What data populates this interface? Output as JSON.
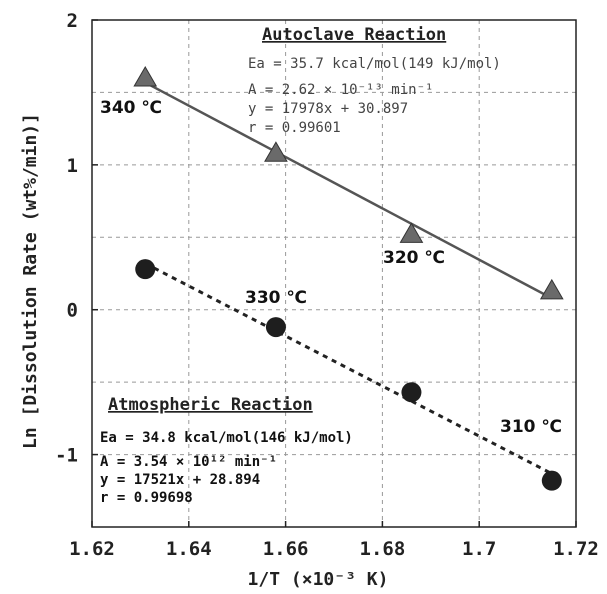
{
  "chart_data": {
    "type": "scatter",
    "xlabel": "1/T (×10⁻³ K)",
    "ylabel": "Ln [Dissolution Rate (wt%/min)]",
    "xlim": [
      1.62,
      1.72
    ],
    "ylim": [
      -1.5,
      2
    ],
    "xticks": [
      "1.62",
      "1.64",
      "1.66",
      "1.68",
      "1.7",
      "1.72"
    ],
    "yticks": [
      "2",
      "1",
      "0",
      "-1"
    ],
    "grid": true,
    "series": [
      {
        "name": "Autoclave Reaction",
        "marker": "triangle",
        "line": "solid",
        "color": "#555555",
        "x": [
          1.631,
          1.658,
          1.686,
          1.715
        ],
        "y": [
          1.6,
          1.08,
          0.52,
          0.13
        ]
      },
      {
        "name": "Atmospheric Reaction",
        "marker": "circle",
        "line": "dotted",
        "color": "#222222",
        "x": [
          1.631,
          1.658,
          1.686,
          1.715
        ],
        "y": [
          0.28,
          -0.12,
          -0.57,
          -1.18
        ]
      }
    ],
    "point_labels": [
      "340 ℃",
      "330 ℃",
      "320 ℃",
      "310 ℃"
    ],
    "annotations": [
      {
        "title": "Autoclave Reaction",
        "lines": [
          "Ea = 35.7 kcal/mol(149 kJ/mol)",
          "A = 2.62 × 10⁻¹³ min⁻¹",
          "y = 17978x + 30.897",
          "r = 0.99601"
        ]
      },
      {
        "title": "Atmospheric Reaction",
        "lines": [
          "Ea = 34.8 kcal/mol(146 kJ/mol)",
          "A = 3.54 × 10¹² min⁻¹",
          "y = 17521x + 28.894",
          "r = 0.99698"
        ]
      }
    ]
  }
}
